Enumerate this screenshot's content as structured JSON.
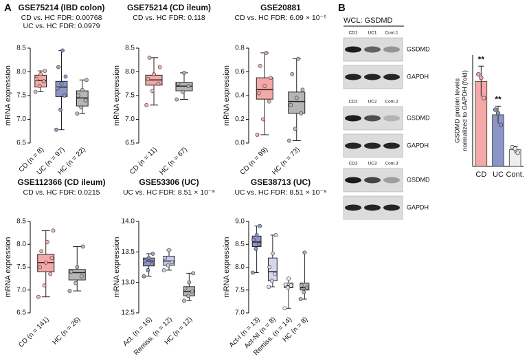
{
  "panels": [
    "A",
    "B"
  ],
  "chart_data": [
    {
      "type": "box",
      "title": "GSE75214 (IBD colon)",
      "subtitle": [
        "CD vs. HC FDR: 0.00768",
        "UC vs. HC FDR: 0.0979"
      ],
      "ylabel": "mRNA expression",
      "categories": [
        "CD (n = 8)",
        "UC (n = 97)",
        "HC (n = 22)"
      ],
      "colors": [
        "#f4a9a8",
        "#8c96c6",
        "#b5b5b5"
      ],
      "box": [
        {
          "min": 7.58,
          "q1": 7.68,
          "median": 7.82,
          "q3": 7.93,
          "max": 8.02
        },
        {
          "min": 6.78,
          "q1": 7.48,
          "median": 7.68,
          "q3": 7.8,
          "max": 8.45
        },
        {
          "min": 7.12,
          "q1": 7.28,
          "median": 7.45,
          "q3": 7.6,
          "max": 7.83
        }
      ],
      "points": [
        [
          7.58,
          7.7,
          7.8,
          7.85,
          7.95,
          8.02
        ],
        [
          6.78,
          7.2,
          7.5,
          7.65,
          7.75,
          7.9,
          8.1,
          8.45
        ],
        [
          7.12,
          7.25,
          7.4,
          7.5,
          7.62,
          7.83
        ]
      ],
      "ylim": [
        6.5,
        8.5
      ],
      "yticks": [
        6.5,
        {
          "value": 7,
          "label": "7.0"
        },
        7.5,
        {
          "value": 8,
          "label": "8.0"
        },
        8.5
      ]
    },
    {
      "type": "box",
      "title": "GSE75214 (CD ileum)",
      "subtitle": [
        "CD vs. HC FDR: 0.118"
      ],
      "ylabel": "mRNA expression",
      "categories": [
        "CD (n = 11)",
        "HC (n = 67)"
      ],
      "colors": [
        "#f4a9a8",
        "#b5b5b5"
      ],
      "box": [
        {
          "min": 7.3,
          "q1": 7.72,
          "median": 7.83,
          "q3": 7.93,
          "max": 8.3
        },
        {
          "min": 7.42,
          "q1": 7.6,
          "median": 7.7,
          "q3": 7.78,
          "max": 7.98
        }
      ],
      "points": [
        [
          7.3,
          7.6,
          7.75,
          7.85,
          7.95,
          8.1,
          8.3
        ],
        [
          7.42,
          7.58,
          7.7,
          7.75,
          7.98
        ]
      ],
      "ylim": [
        6.5,
        8.5
      ],
      "yticks": [
        6.5,
        {
          "value": 7,
          "label": "7.0"
        },
        7.5,
        {
          "value": 8,
          "label": "8.0"
        },
        8.5
      ]
    },
    {
      "type": "box",
      "title": "GSE20881",
      "subtitle": [
        "CD vs. HC FDR: 6.09 × 10⁻⁵"
      ],
      "ylabel": "mRNA expression",
      "categories": [
        "CD (n = 99)",
        "HC (n = 73)"
      ],
      "colors": [
        "#f4a9a8",
        "#b5b5b5"
      ],
      "box": [
        {
          "min": 0.07,
          "q1": 0.37,
          "median": 0.45,
          "q3": 0.55,
          "max": 0.76
        },
        {
          "min": 0.02,
          "q1": 0.25,
          "median": 0.35,
          "q3": 0.43,
          "max": 0.71
        }
      ],
      "points": [
        [
          0.07,
          0.2,
          0.35,
          0.42,
          0.48,
          0.55,
          0.65,
          0.76
        ],
        [
          0.02,
          0.12,
          0.25,
          0.32,
          0.38,
          0.45,
          0.58,
          0.71
        ]
      ],
      "ylim": [
        0,
        0.8
      ],
      "yticks": [
        {
          "value": 0,
          "label": "0.0"
        },
        0.2,
        0.4,
        0.6,
        0.8
      ]
    },
    {
      "type": "box",
      "title": "GSE112366 (CD ileum)",
      "subtitle": [
        "CD vs. HC FDR: 0.0215"
      ],
      "ylabel": "mRNA expression",
      "categories": [
        "CD (n = 141)",
        "HC (n = 26)"
      ],
      "colors": [
        "#f4a9a8",
        "#b5b5b5"
      ],
      "box": [
        {
          "min": 6.85,
          "q1": 7.4,
          "median": 7.6,
          "q3": 7.78,
          "max": 8.3
        },
        {
          "min": 6.98,
          "q1": 7.22,
          "median": 7.38,
          "q3": 7.45,
          "max": 7.95
        }
      ],
      "points": [
        [
          6.85,
          7.1,
          7.35,
          7.5,
          7.6,
          7.7,
          7.85,
          8.05,
          8.3
        ],
        [
          6.98,
          7.15,
          7.3,
          7.4,
          7.5,
          7.95
        ]
      ],
      "ylim": [
        6.5,
        8.5
      ],
      "yticks": [
        6.5,
        {
          "value": 7,
          "label": "7.0"
        },
        7.5,
        {
          "value": 8,
          "label": "8.0"
        },
        8.5
      ]
    },
    {
      "type": "box",
      "title": "GSE53306 (UC)",
      "subtitle": [
        "UC vs. HC FDR: 8.51 × 10⁻⁹"
      ],
      "ylabel": "mRNA expression",
      "categories": [
        "Act. (n = 16)",
        "Remiss. (n = 12)",
        "HC (n = 12)"
      ],
      "colors": [
        "#8c96c6",
        "#c9cdea",
        "#b5b5b5"
      ],
      "box": [
        {
          "min": 13.1,
          "q1": 13.27,
          "median": 13.35,
          "q3": 13.4,
          "max": 13.47
        },
        {
          "min": 13.2,
          "q1": 13.28,
          "median": 13.35,
          "q3": 13.43,
          "max": 13.53
        },
        {
          "min": 12.7,
          "q1": 12.78,
          "median": 12.85,
          "q3": 12.93,
          "max": 13.15
        }
      ],
      "points": [
        [
          13.1,
          13.2,
          13.3,
          13.35,
          13.4,
          13.47
        ],
        [
          13.2,
          13.28,
          13.33,
          13.4,
          13.53
        ],
        [
          12.7,
          12.78,
          12.85,
          12.9,
          13.0,
          13.15
        ]
      ],
      "ylim": [
        12.5,
        14
      ],
      "yticks": [
        12.5,
        {
          "value": 13,
          "label": "13.0"
        },
        13.5,
        {
          "value": 14,
          "label": "14.0"
        }
      ]
    },
    {
      "type": "box",
      "title": "GSE38713 (UC)",
      "subtitle": [
        "UC vs. HC FDR: 8.51 × 10⁻⁹"
      ],
      "ylabel": "mRNA expression",
      "categories": [
        "Act-I (n = 13)",
        "Act-NI (n = 8)",
        "Remiss. (n = 14)",
        "HC (n = 8)"
      ],
      "colors": [
        "#8c96c6",
        "#d5d8ee",
        "#f2f2f2",
        "#b5b5b5"
      ],
      "box": [
        {
          "min": 7.88,
          "q1": 8.45,
          "median": 8.55,
          "q3": 8.68,
          "max": 8.9
        },
        {
          "min": 7.57,
          "q1": 7.7,
          "median": 7.9,
          "q3": 8.2,
          "max": 8.7
        },
        {
          "min": 7.1,
          "q1": 7.55,
          "median": 7.6,
          "q3": 7.65,
          "max": 7.75
        },
        {
          "min": 7.3,
          "q1": 7.5,
          "median": 7.55,
          "q3": 7.65,
          "max": 8.32
        }
      ],
      "points": [
        [
          7.88,
          8.4,
          8.5,
          8.6,
          8.7,
          8.9
        ],
        [
          7.57,
          7.7,
          7.85,
          8.0,
          8.3,
          8.7
        ],
        [
          7.1,
          7.55,
          7.6,
          7.62,
          7.75
        ],
        [
          7.3,
          7.45,
          7.55,
          7.6,
          8.32
        ]
      ],
      "ylim": [
        7,
        9
      ],
      "yticks": [
        {
          "value": 7,
          "label": "7.0"
        },
        7.5,
        {
          "value": 8,
          "label": "8.0"
        },
        8.5,
        {
          "value": 9,
          "label": "9.0"
        }
      ]
    },
    {
      "type": "bar",
      "ylabel": [
        "GSDMD protein levels",
        "normalized to GAPDH (fold)"
      ],
      "categories": [
        "CD",
        "UC",
        "Cont."
      ],
      "colors": [
        "#f4a9a8",
        "#8c96c6",
        "#eeeeee"
      ],
      "values": [
        1.68,
        1.02,
        0.33
      ],
      "errors": [
        0.3,
        0.17,
        0.07
      ],
      "points": [
        [
          1.82,
          1.75,
          1.35
        ],
        [
          1.12,
          1.05,
          0.82
        ],
        [
          0.38,
          0.35,
          0.27
        ]
      ],
      "annotations": [
        "**",
        "**",
        null
      ],
      "ylim": [
        0,
        2.2
      ]
    }
  ],
  "blot": {
    "title": "WCL: GSDMD",
    "groups": [
      {
        "lanes": [
          "CD1",
          "UC1",
          "Cont.1"
        ],
        "bands": [
          "GSDMD",
          "GAPDH"
        ]
      },
      {
        "lanes": [
          "CD2",
          "UC2",
          "Cont.2"
        ],
        "bands": [
          "GSDMD",
          "GAPDH"
        ]
      },
      {
        "lanes": [
          "CD3",
          "UC3",
          "Cont.3"
        ],
        "bands": [
          "GSDMD",
          "GAPDH"
        ]
      }
    ]
  }
}
